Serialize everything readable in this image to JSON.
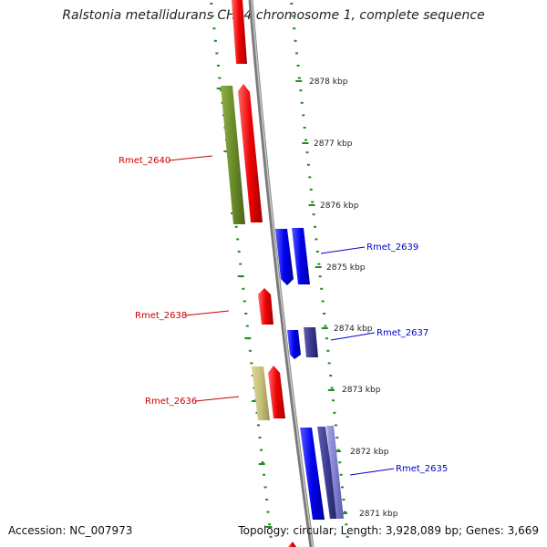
{
  "title": "Ralstonia metallidurans CH34 chromosome 1, complete sequence",
  "footer": {
    "accession": "Accession: NC_007973",
    "topology": "Topology: circular; Length: 3,928,089 bp; Genes: 3,669"
  },
  "colors": {
    "forward_gene": "#ee0000",
    "reverse_gene": "#0000ee",
    "reverse_gene_dark": "#3a3a90",
    "reverse_gene_light": "#8080d0",
    "olive_gene": "#6b8c2a",
    "khaki_gene": "#c6c07a",
    "backbone": "#8a8a8a",
    "tick": "#228b22",
    "forward_label": "#cc0000",
    "reverse_label": "#0000cc"
  },
  "kbp_ticks": [
    {
      "label": "2878 kbp",
      "value": 2878
    },
    {
      "label": "2877 kbp",
      "value": 2877
    },
    {
      "label": "2876 kbp",
      "value": 2876
    },
    {
      "label": "2875 kbp",
      "value": 2875
    },
    {
      "label": "2874 kbp",
      "value": 2874
    },
    {
      "label": "2873 kbp",
      "value": 2873
    },
    {
      "label": "2872 kbp",
      "value": 2872
    },
    {
      "label": "2871 kbp",
      "value": 2871
    }
  ],
  "gene_labels": [
    {
      "text": "Rmet_2640",
      "strand": "forward"
    },
    {
      "text": "Rmet_2639",
      "strand": "reverse"
    },
    {
      "text": "Rmet_2638",
      "strand": "forward"
    },
    {
      "text": "Rmet_2637",
      "strand": "reverse"
    },
    {
      "text": "Rmet_2636",
      "strand": "forward"
    },
    {
      "text": "Rmet_2635",
      "strand": "reverse"
    }
  ]
}
